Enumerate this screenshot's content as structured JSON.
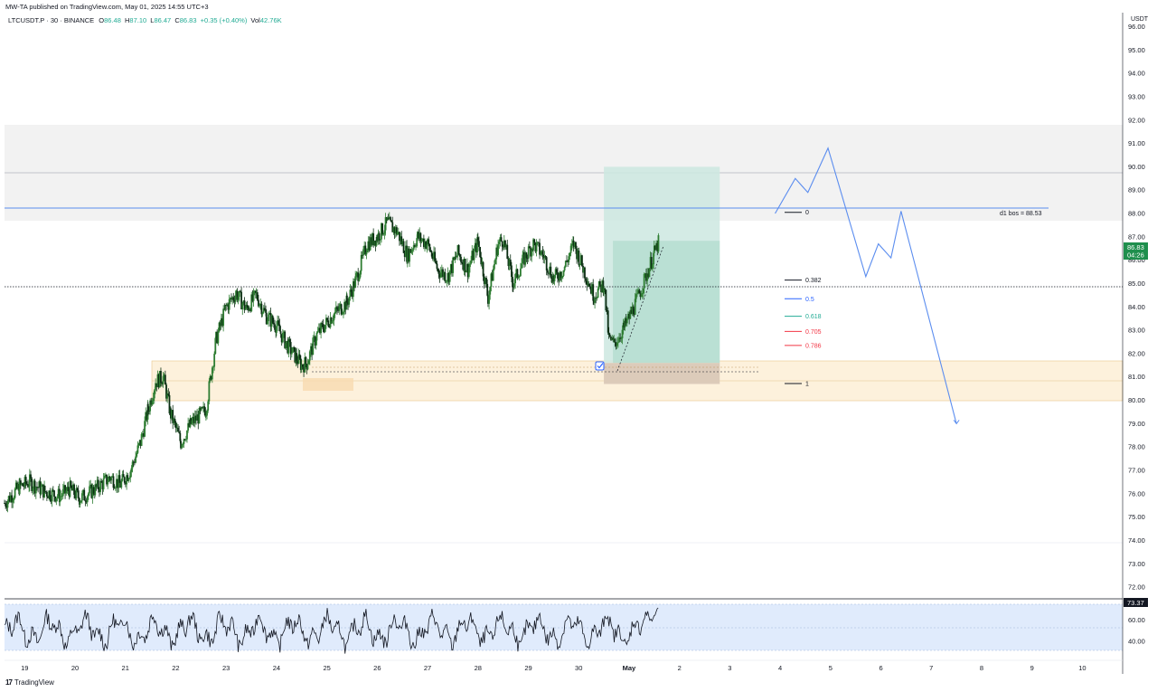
{
  "header": {
    "published": "MW-TA published on TradingView.com, May 01, 2025 14:55 UTC+3"
  },
  "legend": {
    "symbol": "LTCUSDT.P · 30 · BINANCE",
    "o_label": "O",
    "o": "86.48",
    "h_label": "H",
    "h": "87.10",
    "l_label": "L",
    "l": "86.47",
    "c_label": "C",
    "c": "86.83",
    "chg": "+0.35 (+0.40%)",
    "vol_label": "Vol",
    "vol": "42.76K"
  },
  "currency": "USDT",
  "brand": {
    "logo": "17",
    "name": "TradingView"
  },
  "colors": {
    "up": "#22ab94",
    "candle": "#1b5e20",
    "projection": "#5b8def",
    "zone": "#f5deb3",
    "target": "#cde8e0",
    "rsi_band": "#dbe8fb"
  },
  "price_tag": {
    "price": "86.83",
    "countdown": "04:26"
  },
  "rsi_tag": "73.37",
  "chart_data": [
    {
      "type": "line",
      "subtype": "candlestick",
      "title": "",
      "x_ticks": [
        "19",
        "20",
        "21",
        "22",
        "23",
        "24",
        "25",
        "26",
        "27",
        "28",
        "29",
        "30",
        "May",
        "2",
        "3",
        "4",
        "5",
        "6",
        "7",
        "8",
        "9",
        "10"
      ],
      "y_ticks": [
        "96.00",
        "95.00",
        "94.00",
        "93.00",
        "92.00",
        "91.00",
        "90.00",
        "89.00",
        "88.00",
        "87.00",
        "86.00",
        "85.00",
        "84.00",
        "83.00",
        "82.00",
        "81.00",
        "80.00",
        "79.00",
        "78.00",
        "77.00",
        "76.00",
        "75.00",
        "74.00",
        "73.00",
        "72.00"
      ],
      "ylim": [
        71.5,
        96.6
      ],
      "xlim": [
        18.6,
        40.8
      ],
      "series": [
        {
          "x": [
            18.6,
            18.9,
            19.1,
            19.4,
            19.7,
            19.9,
            20.1,
            20.4,
            20.7,
            20.9,
            21.1,
            21.3,
            21.45,
            21.6,
            21.75,
            21.9,
            22.1,
            22.3,
            22.6,
            22.8,
            23.0,
            23.2,
            23.4,
            23.6,
            23.8,
            24.0,
            24.2,
            24.4,
            24.5,
            24.6,
            24.8,
            25.1,
            25.4,
            25.6,
            25.8,
            26.0,
            26.2,
            26.4,
            26.6,
            26.8,
            27.0,
            27.2,
            27.4,
            27.6,
            27.8,
            28.0,
            28.2,
            28.4,
            28.5,
            28.7,
            28.9,
            29.1,
            29.3,
            29.5,
            29.7,
            29.9,
            30.1,
            30.3,
            30.5,
            30.6,
            30.7,
            30.9,
            31.1,
            31.3,
            31.5,
            31.6
          ],
          "values": [
            75.6,
            76.3,
            76.5,
            76.1,
            75.9,
            76.2,
            75.8,
            76.2,
            76.7,
            76.4,
            77.0,
            78.2,
            79.6,
            80.8,
            81.0,
            79.4,
            78.2,
            79.0,
            79.6,
            82.6,
            84.0,
            84.6,
            83.9,
            84.5,
            83.6,
            83.2,
            82.4,
            81.8,
            81.5,
            81.6,
            82.8,
            83.6,
            84.2,
            85.3,
            86.7,
            87.0,
            87.6,
            87.2,
            86.2,
            87.0,
            86.7,
            85.6,
            85.3,
            86.3,
            85.6,
            86.8,
            84.4,
            86.7,
            86.9,
            85.0,
            86.0,
            86.7,
            86.2,
            85.2,
            85.6,
            86.7,
            85.6,
            84.5,
            85.0,
            82.6,
            82.4,
            83.1,
            84.0,
            85.1,
            86.3,
            86.83
          ]
        }
      ],
      "fib_levels": [
        {
          "label": "0",
          "color": "#131722"
        },
        {
          "label": "0.382",
          "color": "#131722"
        },
        {
          "label": "0.5",
          "color": "#2962ff"
        },
        {
          "label": "0.618",
          "color": "#22ab94"
        },
        {
          "label": "0.705",
          "color": "#f23645"
        },
        {
          "label": "0.786",
          "color": "#f23645"
        },
        {
          "label": "1",
          "color": "#131722"
        }
      ],
      "fib_prices": [
        88.05,
        85.15,
        84.35,
        83.6,
        82.95,
        82.35,
        80.72
      ],
      "annotation": "d1 bos = 88.53",
      "bos_level": 88.53,
      "supply_zone": [
        88.1,
        92.0
      ],
      "demand_zone": [
        80.25,
        82.0
      ],
      "long_position": {
        "x": [
          30.5,
          32.8
        ],
        "entry": 81.6,
        "target": 90.0,
        "stop": 80.7
      },
      "projection": {
        "x": [
          33.9,
          34.3,
          34.55,
          34.95,
          35.7,
          35.95,
          36.2,
          36.4,
          37.5
        ],
        "values": [
          88.0,
          89.5,
          88.9,
          90.8,
          85.3,
          86.7,
          86.1,
          88.1,
          79.0
        ]
      }
    },
    {
      "type": "line",
      "title": "",
      "y_ticks": [
        "60.00",
        "40.00"
      ],
      "ylim": [
        22,
        80
      ],
      "band": [
        30,
        70
      ],
      "last_value": 73.37
    }
  ]
}
